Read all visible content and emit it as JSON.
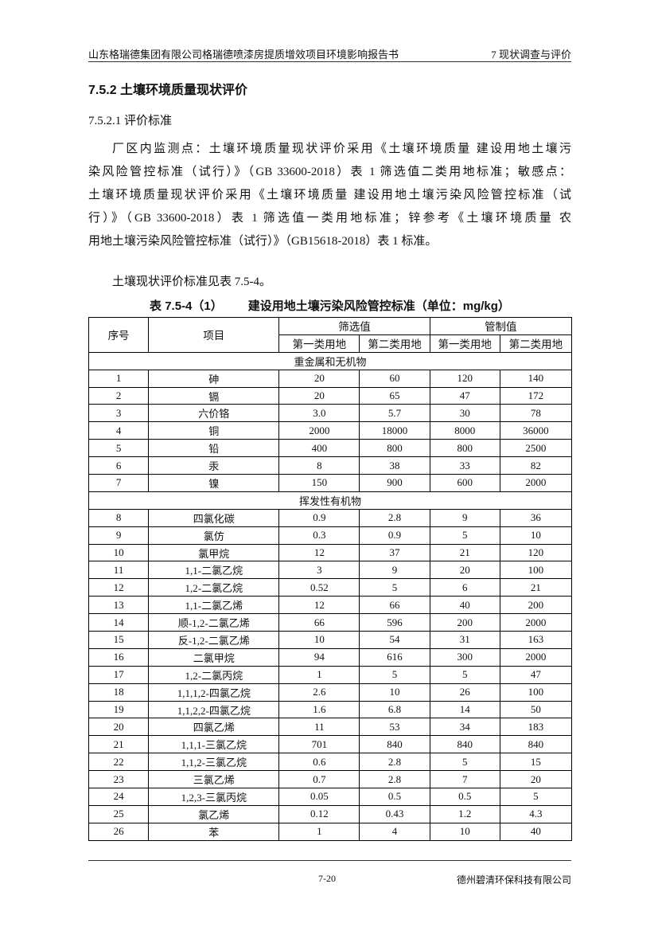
{
  "header": {
    "left": "山东格瑞德集团有限公司格瑞德喷漆房提质增效项目环境影响报告书",
    "right": "7 现状调查与评价"
  },
  "section_title": "7.5.2  土壤环境质量现状评价",
  "subsection_title": "7.5.2.1 评价标准",
  "paragraph_lines": [
    "厂区内监测点：土壤环境质量现状评价采用《土壤环境质量  建设用地土壤污",
    "染风险管控标准（试行）》（GB 33600-2018）表 1 筛选值二类用地标准；敏感点：",
    "土壤环境质量现状评价采用《土壤环境质量  建设用地土壤污染风险管控标准（试",
    "行）》（GB 33600-2018）表 1 筛选值一类用地标准；锌参考《土壤环境质量  农",
    "用地土壤污染风险管控标准（试行）》（GB15618-2018）表 1 标准。"
  ],
  "reference_text": "土壤现状评价标准见表 7.5-4。",
  "table": {
    "caption_no": "表 7.5-4（1）",
    "caption": "建设用地土壤污染风险管控标准（单位：mg/kg）",
    "headers": {
      "no": "序号",
      "item": "项目",
      "screening": "筛选值",
      "control": "管制值",
      "class1": "第一类用地",
      "class2": "第二类用地"
    },
    "groups": [
      {
        "title": "重金属和无机物",
        "rows": [
          [
            "1",
            "砷",
            "20",
            "60",
            "120",
            "140"
          ],
          [
            "2",
            "镉",
            "20",
            "65",
            "47",
            "172"
          ],
          [
            "3",
            "六价铬",
            "3.0",
            "5.7",
            "30",
            "78"
          ],
          [
            "4",
            "铜",
            "2000",
            "18000",
            "8000",
            "36000"
          ],
          [
            "5",
            "铅",
            "400",
            "800",
            "800",
            "2500"
          ],
          [
            "6",
            "汞",
            "8",
            "38",
            "33",
            "82"
          ],
          [
            "7",
            "镍",
            "150",
            "900",
            "600",
            "2000"
          ]
        ]
      },
      {
        "title": "挥发性有机物",
        "rows": [
          [
            "8",
            "四氯化碳",
            "0.9",
            "2.8",
            "9",
            "36"
          ],
          [
            "9",
            "氯仿",
            "0.3",
            "0.9",
            "5",
            "10"
          ],
          [
            "10",
            "氯甲烷",
            "12",
            "37",
            "21",
            "120"
          ],
          [
            "11",
            "1,1-二氯乙烷",
            "3",
            "9",
            "20",
            "100"
          ],
          [
            "12",
            "1,2-二氯乙烷",
            "0.52",
            "5",
            "6",
            "21"
          ],
          [
            "13",
            "1,1-二氯乙烯",
            "12",
            "66",
            "40",
            "200"
          ],
          [
            "14",
            "顺-1,2-二氯乙烯",
            "66",
            "596",
            "200",
            "2000"
          ],
          [
            "15",
            "反-1,2-二氯乙烯",
            "10",
            "54",
            "31",
            "163"
          ],
          [
            "16",
            "二氯甲烷",
            "94",
            "616",
            "300",
            "2000"
          ],
          [
            "17",
            "1,2-二氯丙烷",
            "1",
            "5",
            "5",
            "47"
          ],
          [
            "18",
            "1,1,1,2-四氯乙烷",
            "2.6",
            "10",
            "26",
            "100"
          ],
          [
            "19",
            "1,1,2,2-四氯乙烷",
            "1.6",
            "6.8",
            "14",
            "50"
          ],
          [
            "20",
            "四氯乙烯",
            "11",
            "53",
            "34",
            "183"
          ],
          [
            "21",
            "1,1,1-三氯乙烷",
            "701",
            "840",
            "840",
            "840"
          ],
          [
            "22",
            "1,1,2-三氯乙烷",
            "0.6",
            "2.8",
            "5",
            "15"
          ],
          [
            "23",
            "三氯乙烯",
            "0.7",
            "2.8",
            "7",
            "20"
          ],
          [
            "24",
            "1,2,3-三氯丙烷",
            "0.05",
            "0.5",
            "0.5",
            "5"
          ],
          [
            "25",
            "氯乙烯",
            "0.12",
            "0.43",
            "1.2",
            "4.3"
          ],
          [
            "26",
            "苯",
            "1",
            "4",
            "10",
            "40"
          ]
        ]
      }
    ]
  },
  "footer": {
    "page": "7-20",
    "company": "德州碧清环保科技有限公司"
  }
}
